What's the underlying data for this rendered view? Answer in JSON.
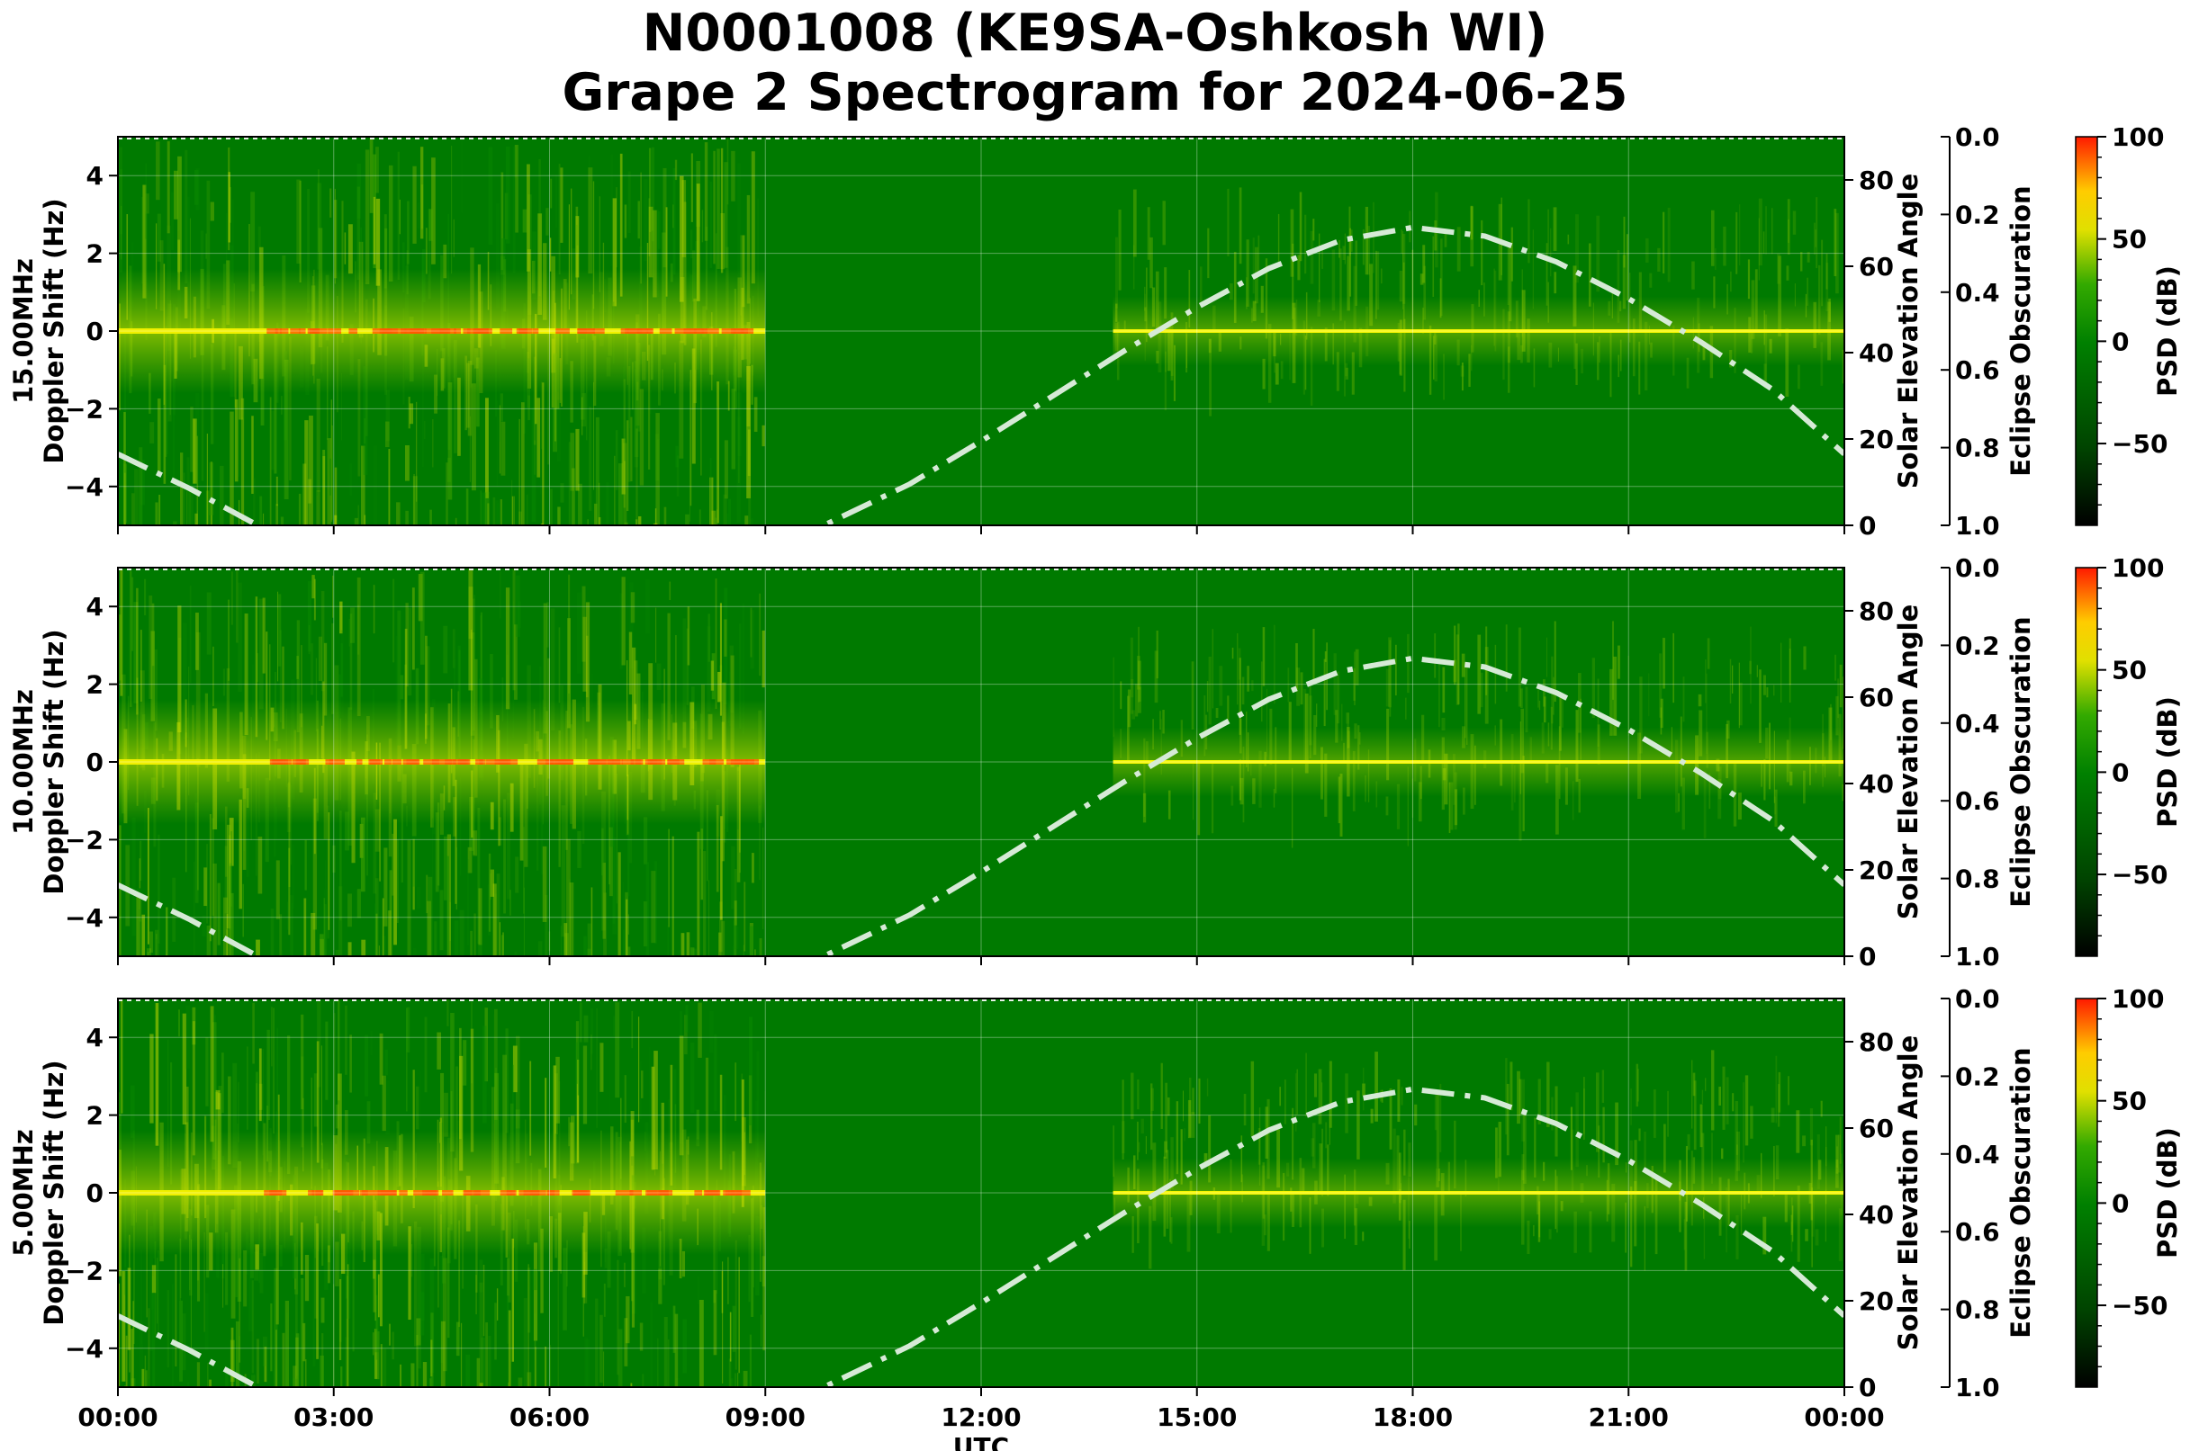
{
  "title": {
    "line1": "N0001008 (KE9SA-Oshkosh WI)",
    "line2": "Grape 2 Spectrogram for 2024-06-25"
  },
  "chart_data": [
    {
      "type": "heatmap",
      "panel": "15MHz",
      "ylabel_line1": "15.00MHz",
      "ylabel_line2": "Doppler Shift (Hz)",
      "ylim": [
        -5,
        5
      ],
      "yticks": [
        -4,
        -2,
        0,
        2,
        4
      ],
      "xlabel": "",
      "x_ticks": [
        "00:00",
        "03:00",
        "06:00",
        "09:00",
        "12:00",
        "15:00",
        "18:00",
        "21:00",
        "00:00"
      ],
      "x_range_hours": [
        0,
        24
      ],
      "carrier_doppler_hz": 0,
      "data_gap_utc": [
        "09:00",
        "13:50"
      ],
      "right_axis_label": "Solar Elevation Angle",
      "right_axis_ylim": [
        0,
        90
      ],
      "right_axis_ticks": [
        0,
        20,
        40,
        60,
        80
      ],
      "obscuration_axis_label": "Eclipse Obscuration",
      "obscuration_ylim": [
        1.0,
        0.0
      ],
      "obscuration_ticks": [
        "0.0",
        "0.2",
        "0.4",
        "0.6",
        "0.8",
        "1.0"
      ],
      "colorbar_label": "PSD (dB)",
      "colorbar_range": [
        -90,
        100
      ],
      "colorbar_ticks": [
        100,
        50,
        0,
        -50
      ],
      "grid": true
    },
    {
      "type": "heatmap",
      "panel": "10MHz",
      "ylabel_line1": "10.00MHz",
      "ylabel_line2": "Doppler Shift (Hz)",
      "ylim": [
        -5,
        5
      ],
      "yticks": [
        -4,
        -2,
        0,
        2,
        4
      ],
      "xlabel": "",
      "x_ticks": [
        "00:00",
        "03:00",
        "06:00",
        "09:00",
        "12:00",
        "15:00",
        "18:00",
        "21:00",
        "00:00"
      ],
      "x_range_hours": [
        0,
        24
      ],
      "carrier_doppler_hz": 0,
      "data_gap_utc": [
        "09:00",
        "13:50"
      ],
      "right_axis_label": "Solar Elevation Angle",
      "right_axis_ylim": [
        0,
        90
      ],
      "right_axis_ticks": [
        0,
        20,
        40,
        60,
        80
      ],
      "obscuration_axis_label": "Eclipse Obscuration",
      "obscuration_ylim": [
        1.0,
        0.0
      ],
      "obscuration_ticks": [
        "0.0",
        "0.2",
        "0.4",
        "0.6",
        "0.8",
        "1.0"
      ],
      "colorbar_label": "PSD (dB)",
      "colorbar_range": [
        -90,
        100
      ],
      "colorbar_ticks": [
        100,
        50,
        0,
        -50
      ],
      "grid": true
    },
    {
      "type": "heatmap",
      "panel": "5MHz",
      "ylabel_line1": "5.00MHz",
      "ylabel_line2": "Doppler Shift (Hz)",
      "ylim": [
        -5,
        5
      ],
      "yticks": [
        -4,
        -2,
        0,
        2,
        4
      ],
      "xlabel": "UTC",
      "x_ticks": [
        "00:00",
        "03:00",
        "06:00",
        "09:00",
        "12:00",
        "15:00",
        "18:00",
        "21:00",
        "00:00"
      ],
      "x_range_hours": [
        0,
        24
      ],
      "carrier_doppler_hz": 0,
      "data_gap_utc": [
        "09:00",
        "13:50"
      ],
      "right_axis_label": "Solar Elevation Angle",
      "right_axis_ylim": [
        0,
        90
      ],
      "right_axis_ticks": [
        0,
        20,
        40,
        60,
        80
      ],
      "obscuration_axis_label": "Eclipse Obscuration",
      "obscuration_ylim": [
        1.0,
        0.0
      ],
      "obscuration_ticks": [
        "0.0",
        "0.2",
        "0.4",
        "0.6",
        "0.8",
        "1.0"
      ],
      "colorbar_label": "PSD (dB)",
      "colorbar_range": [
        -90,
        100
      ],
      "colorbar_ticks": [
        100,
        50,
        0,
        -50
      ],
      "grid": true
    }
  ],
  "solar_elevation_curve": {
    "style": "dash-dot",
    "color": "#d6ead6",
    "hours": [
      0,
      1,
      2,
      3,
      4,
      5,
      6,
      7,
      8,
      9,
      10,
      10.5,
      11,
      12,
      13,
      14,
      15,
      16,
      17,
      18,
      19,
      20,
      21,
      22,
      23,
      24
    ],
    "elevation_deg": [
      16.5,
      8.5,
      -0.5,
      -8,
      -14,
      -18,
      -19,
      -17.5,
      -13,
      -6.5,
      1.5,
      5.5,
      9.5,
      19.5,
      30,
      40.5,
      50.5,
      59.5,
      66,
      69,
      67,
      61,
      52.5,
      42.5,
      31.5,
      16.5
    ]
  },
  "colors": {
    "background_green": "#007a00",
    "colormap": [
      "#000000",
      "#006400",
      "#00a000",
      "#ffff00",
      "#ff0000"
    ]
  }
}
